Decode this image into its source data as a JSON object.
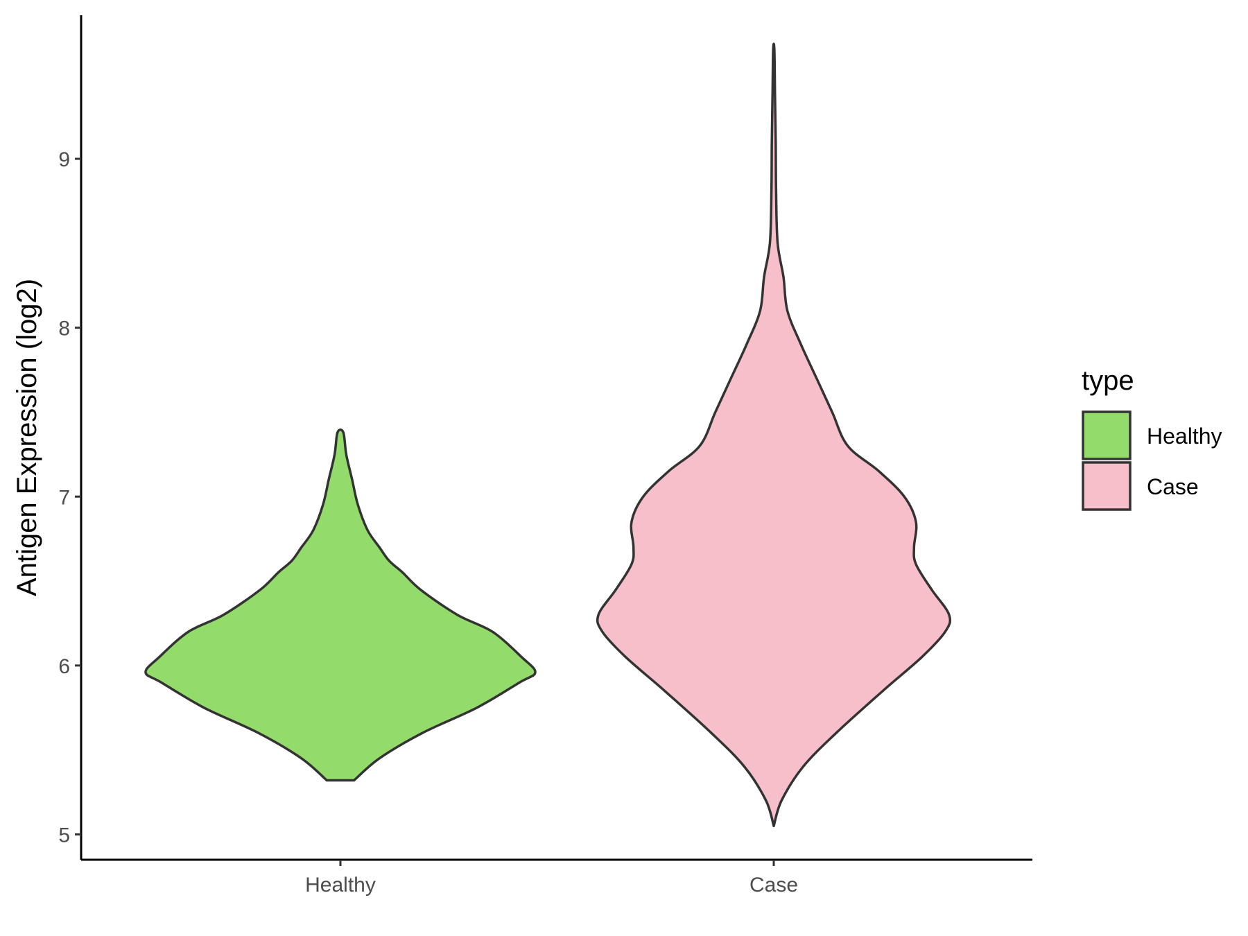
{
  "chart_data": {
    "type": "violin",
    "categories": [
      "Healthy",
      "Case"
    ],
    "xlabel": "",
    "ylabel": "Antigen Expression (log2)",
    "ylim": [
      4.85,
      9.85
    ],
    "yticks": [
      "5",
      "6",
      "7",
      "8",
      "9"
    ],
    "grid": false,
    "legend": {
      "title": "type",
      "position": "right",
      "entries": [
        {
          "label": "Healthy",
          "color": "#93db6a"
        },
        {
          "label": "Case",
          "color": "#f7bfca"
        }
      ]
    },
    "outline_color": "#333333",
    "series": [
      {
        "name": "Healthy",
        "color": "#93db6a",
        "min": 5.32,
        "max": 7.38,
        "density_profile": [
          [
            5.32,
            0.07
          ],
          [
            5.45,
            0.2
          ],
          [
            5.6,
            0.42
          ],
          [
            5.75,
            0.7
          ],
          [
            5.9,
            0.92
          ],
          [
            5.96,
            1.0
          ],
          [
            6.05,
            0.93
          ],
          [
            6.2,
            0.78
          ],
          [
            6.3,
            0.6
          ],
          [
            6.45,
            0.41
          ],
          [
            6.55,
            0.32
          ],
          [
            6.62,
            0.25
          ],
          [
            6.7,
            0.2
          ],
          [
            6.8,
            0.14
          ],
          [
            6.95,
            0.09
          ],
          [
            7.1,
            0.06
          ],
          [
            7.25,
            0.03
          ],
          [
            7.38,
            0.015
          ]
        ]
      },
      {
        "name": "Case",
        "color": "#f7bfca",
        "min": 5.05,
        "max": 9.65,
        "density_profile": [
          [
            5.05,
            0.0
          ],
          [
            5.2,
            0.04
          ],
          [
            5.4,
            0.15
          ],
          [
            5.6,
            0.32
          ],
          [
            5.85,
            0.56
          ],
          [
            6.05,
            0.76
          ],
          [
            6.2,
            0.88
          ],
          [
            6.3,
            0.9
          ],
          [
            6.45,
            0.81
          ],
          [
            6.6,
            0.73
          ],
          [
            6.7,
            0.72
          ],
          [
            6.85,
            0.73
          ],
          [
            7.0,
            0.67
          ],
          [
            7.15,
            0.54
          ],
          [
            7.3,
            0.38
          ],
          [
            7.5,
            0.3
          ],
          [
            7.7,
            0.22
          ],
          [
            7.9,
            0.14
          ],
          [
            8.1,
            0.07
          ],
          [
            8.3,
            0.05
          ],
          [
            8.5,
            0.02
          ],
          [
            8.8,
            0.012
          ],
          [
            9.1,
            0.01
          ],
          [
            9.4,
            0.006
          ],
          [
            9.65,
            0.003
          ]
        ]
      }
    ]
  }
}
